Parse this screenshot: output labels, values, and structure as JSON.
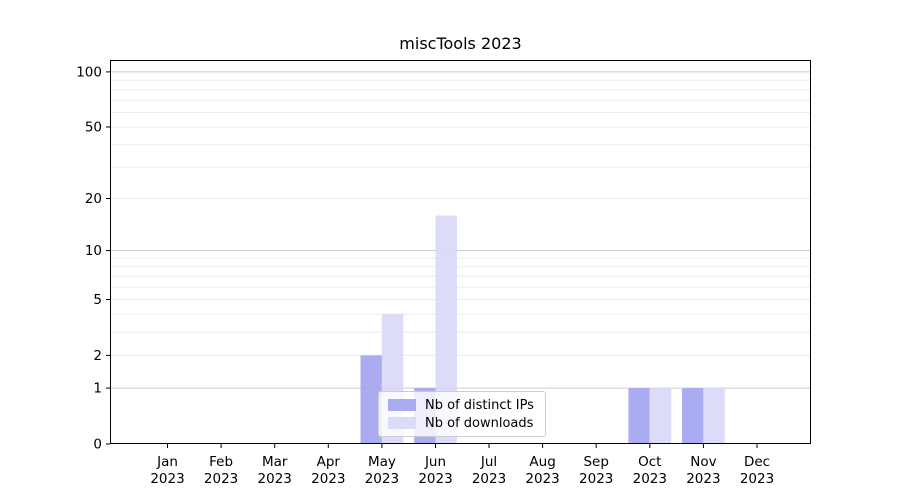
{
  "chart_data": {
    "type": "bar",
    "title": "miscTools 2023",
    "categories": [
      "Jan",
      "Feb",
      "Mar",
      "Apr",
      "May",
      "Jun",
      "Jul",
      "Aug",
      "Sep",
      "Oct",
      "Nov",
      "Dec"
    ],
    "category_year": "2023",
    "series": [
      {
        "name": "Nb of distinct IPs",
        "color": "#a2a2f0",
        "values": [
          0,
          0,
          0,
          0,
          2,
          1,
          0,
          0,
          0,
          1,
          1,
          0
        ]
      },
      {
        "name": "Nb of downloads",
        "color": "#d8d8f8",
        "values": [
          0,
          0,
          0,
          0,
          4,
          16,
          0,
          0,
          0,
          1,
          1,
          0
        ]
      }
    ],
    "yscale": "log1p",
    "ylim": [
      0,
      116
    ],
    "yticks": [
      0,
      1,
      2,
      5,
      10,
      20,
      50,
      100
    ],
    "major_gridlines": [
      1,
      10,
      100
    ],
    "minor_gridlines": [
      2,
      3,
      4,
      5,
      6,
      7,
      8,
      9,
      20,
      30,
      40,
      50,
      60,
      70,
      80,
      90
    ],
    "grid": true,
    "legend_position": "lower center"
  },
  "colors": {
    "background": "#ffffff",
    "axis": "#000000",
    "text": "#000000",
    "grid_major": "#cccccc",
    "grid_minor": "#ececec",
    "legend_border": "#cccccc"
  }
}
